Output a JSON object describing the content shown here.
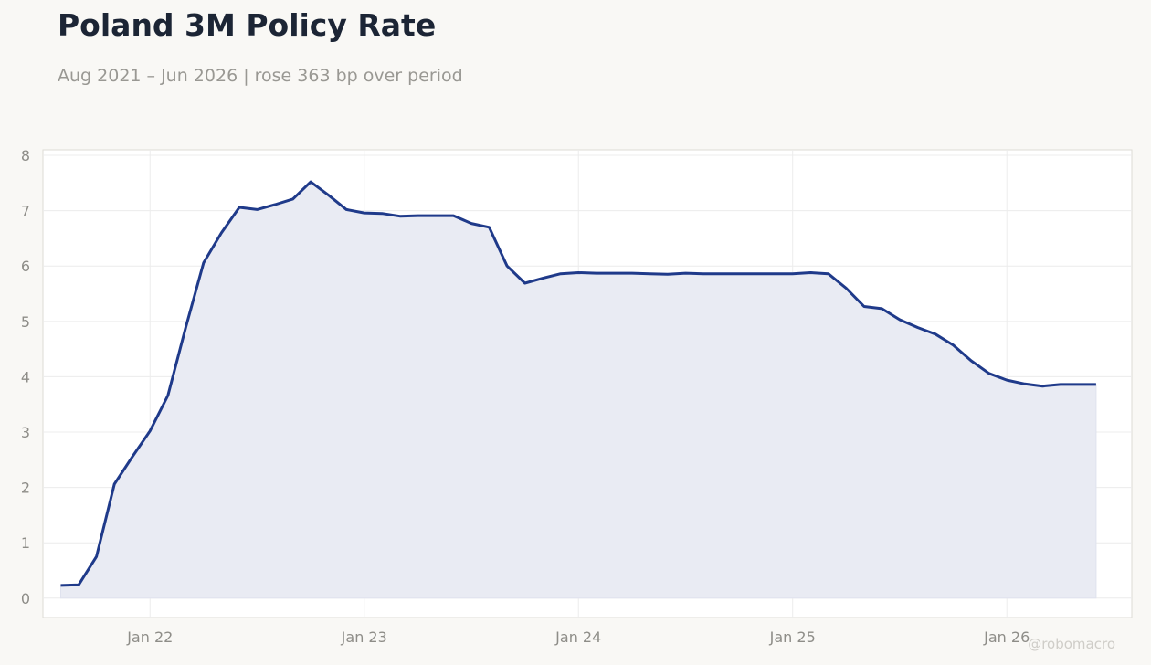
{
  "title": "Poland 3M Policy Rate",
  "subtitle": "Aug 2021 – Jun 2026 | rose 363 bp over period",
  "watermark": "@robomacro",
  "colors": {
    "line": "#1f3a8a",
    "fill": "#e9ebf3",
    "background": "#f9f8f5",
    "plot_bg": "#ffffff",
    "grid": "#ececec"
  },
  "chart_data": {
    "type": "area",
    "title": "Poland 3M Policy Rate",
    "subtitle": "Aug 2021 – Jun 2026 | rose 363 bp over period",
    "xlabel": "",
    "ylabel": "",
    "x_ticks": [
      "Jan 22",
      "Jan 23",
      "Jan 24",
      "Jan 25",
      "Jan 26"
    ],
    "y_ticks": [
      0,
      1,
      2,
      3,
      4,
      5,
      6,
      7,
      8
    ],
    "ylim": [
      -0.35,
      8.1
    ],
    "xlim": [
      "2021-07",
      "2026-08"
    ],
    "grid": true,
    "series": [
      {
        "x": [
          "2021-08",
          "2021-09",
          "2021-10",
          "2021-11",
          "2021-12",
          "2022-01",
          "2022-02",
          "2022-03",
          "2022-04",
          "2022-05",
          "2022-06",
          "2022-07",
          "2022-08",
          "2022-09",
          "2022-10",
          "2022-11",
          "2022-12",
          "2023-01",
          "2023-02",
          "2023-03",
          "2023-04",
          "2023-05",
          "2023-06",
          "2023-07",
          "2023-08",
          "2023-09",
          "2023-10",
          "2023-11",
          "2023-12",
          "2024-01",
          "2024-02",
          "2024-03",
          "2024-04",
          "2024-05",
          "2024-06",
          "2024-07",
          "2024-08",
          "2024-09",
          "2024-10",
          "2024-11",
          "2024-12",
          "2025-01",
          "2025-02",
          "2025-03",
          "2025-04",
          "2025-05",
          "2025-06",
          "2025-07",
          "2025-08",
          "2025-09",
          "2025-10",
          "2025-11",
          "2025-12",
          "2026-01",
          "2026-02",
          "2026-03",
          "2026-04",
          "2026-05",
          "2026-06"
        ],
        "values": [
          0.23,
          0.24,
          0.75,
          2.06,
          2.55,
          3.02,
          3.66,
          4.89,
          6.06,
          6.6,
          7.06,
          7.02,
          7.11,
          7.21,
          7.52,
          7.28,
          7.02,
          6.96,
          6.95,
          6.9,
          6.91,
          6.91,
          6.91,
          6.77,
          6.7,
          6.0,
          5.69,
          5.78,
          5.86,
          5.88,
          5.87,
          5.87,
          5.87,
          5.86,
          5.85,
          5.87,
          5.86,
          5.86,
          5.86,
          5.86,
          5.86,
          5.86,
          5.88,
          5.86,
          5.6,
          5.27,
          5.23,
          5.03,
          4.89,
          4.77,
          4.57,
          4.29,
          4.06,
          3.94,
          3.87,
          3.83,
          3.86,
          3.86,
          3.86
        ]
      }
    ]
  }
}
